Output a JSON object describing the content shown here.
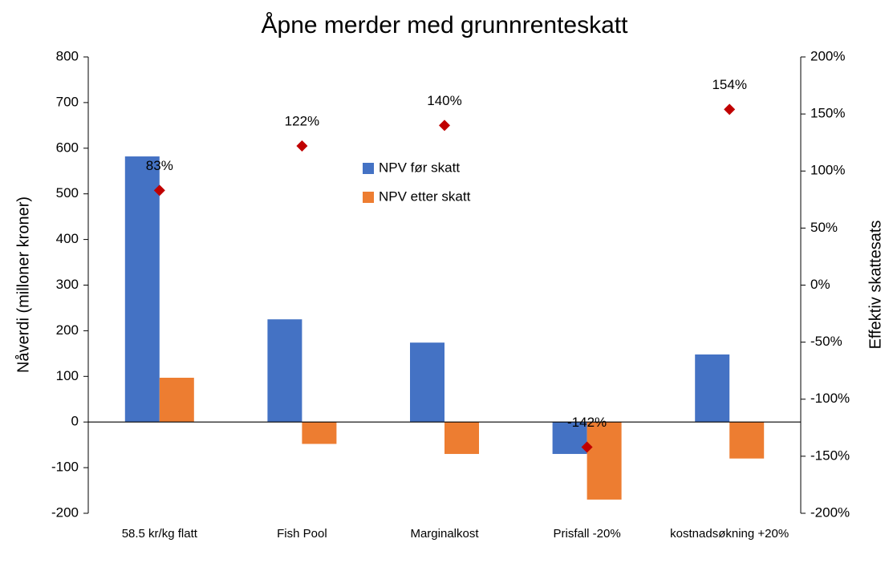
{
  "chart_data": {
    "type": "bar",
    "title": "Åpne merder med grunnrenteskatt",
    "ylabel": "Nåverdi (milloner kroner)",
    "y2label": "Effektiv skattesats",
    "categories": [
      "58.5 kr/kg flatt",
      "Fish Pool",
      "Marginalkost",
      "Prisfall -20%",
      "kostnadsøkning +20%"
    ],
    "series": [
      {
        "name": "NPV før skatt",
        "color": "#4472c4",
        "values": [
          582,
          225,
          174,
          -70,
          148
        ]
      },
      {
        "name": "NPV etter skatt",
        "color": "#ed7d31",
        "values": [
          97,
          -48,
          -70,
          -170,
          -80
        ]
      },
      {
        "type": "scatter",
        "axis": "y2",
        "color": "#c00000",
        "values": [
          83,
          122,
          140,
          -142,
          154
        ],
        "value_labels": [
          "83%",
          "122%",
          "140%",
          "-142%",
          "154%"
        ]
      }
    ],
    "ylim": [
      -200,
      800
    ],
    "yticks": [
      -200,
      -100,
      0,
      100,
      200,
      300,
      400,
      500,
      600,
      700,
      800
    ],
    "y2lim": [
      -200,
      200
    ],
    "y2ticks": [
      {
        "value": -200,
        "label": "-200%"
      },
      {
        "value": -150,
        "label": "-150%"
      },
      {
        "value": -100,
        "label": "-100%"
      },
      {
        "value": -50,
        "label": "-50%"
      },
      {
        "value": 0,
        "label": "0%"
      },
      {
        "value": 50,
        "label": "50%"
      },
      {
        "value": 100,
        "label": "100%"
      },
      {
        "value": 150,
        "label": "150%"
      },
      {
        "value": 200,
        "label": "200%"
      }
    ]
  }
}
